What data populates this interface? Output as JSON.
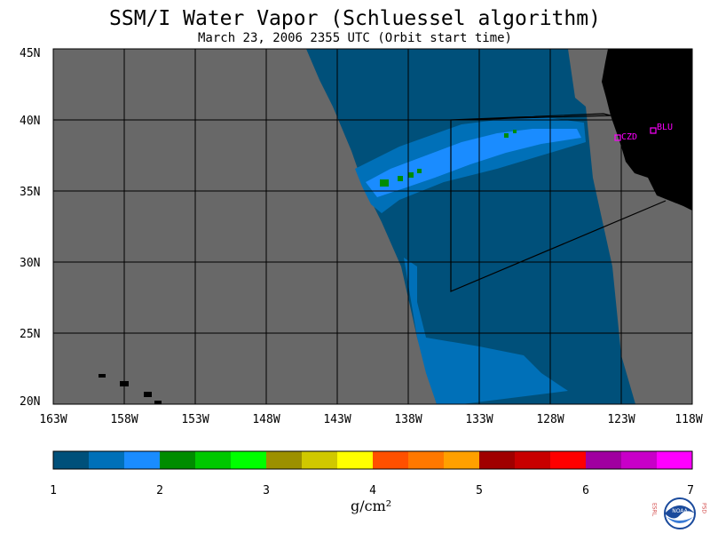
{
  "title": "SSM/I Water Vapor (Schluessel algorithm)",
  "subtitle": "March 23, 2006  2355 UTC  (Orbit start time)",
  "lat_labels": [
    "45N",
    "40N",
    "35N",
    "30N",
    "25N",
    "20N"
  ],
  "lon_labels": [
    "163W",
    "158W",
    "153W",
    "148W",
    "143W",
    "138W",
    "133W",
    "128W",
    "123W",
    "118W"
  ],
  "stations": [
    {
      "id": "czd",
      "name": "CZD"
    },
    {
      "id": "blu",
      "name": "BLU"
    }
  ],
  "colorbar": {
    "colors": [
      "#00507a",
      "#0070b8",
      "#1a8cff",
      "#008c00",
      "#00c800",
      "#00ff00",
      "#9c9000",
      "#d0c800",
      "#ffff00",
      "#ff5000",
      "#ff7800",
      "#ffa000",
      "#a00000",
      "#c80000",
      "#ff0000",
      "#a000a0",
      "#c800c8",
      "#ff00ff"
    ],
    "tick_labels": [
      "1",
      "2",
      "3",
      "4",
      "5",
      "6",
      "7"
    ],
    "unit": "g/cm²"
  },
  "colors": {
    "land": "#000000",
    "no_data": "#686868",
    "station": "#ff00ff"
  },
  "logo": {
    "org": "NOAA",
    "left_text": "ESRL",
    "right_text": "PSD"
  }
}
